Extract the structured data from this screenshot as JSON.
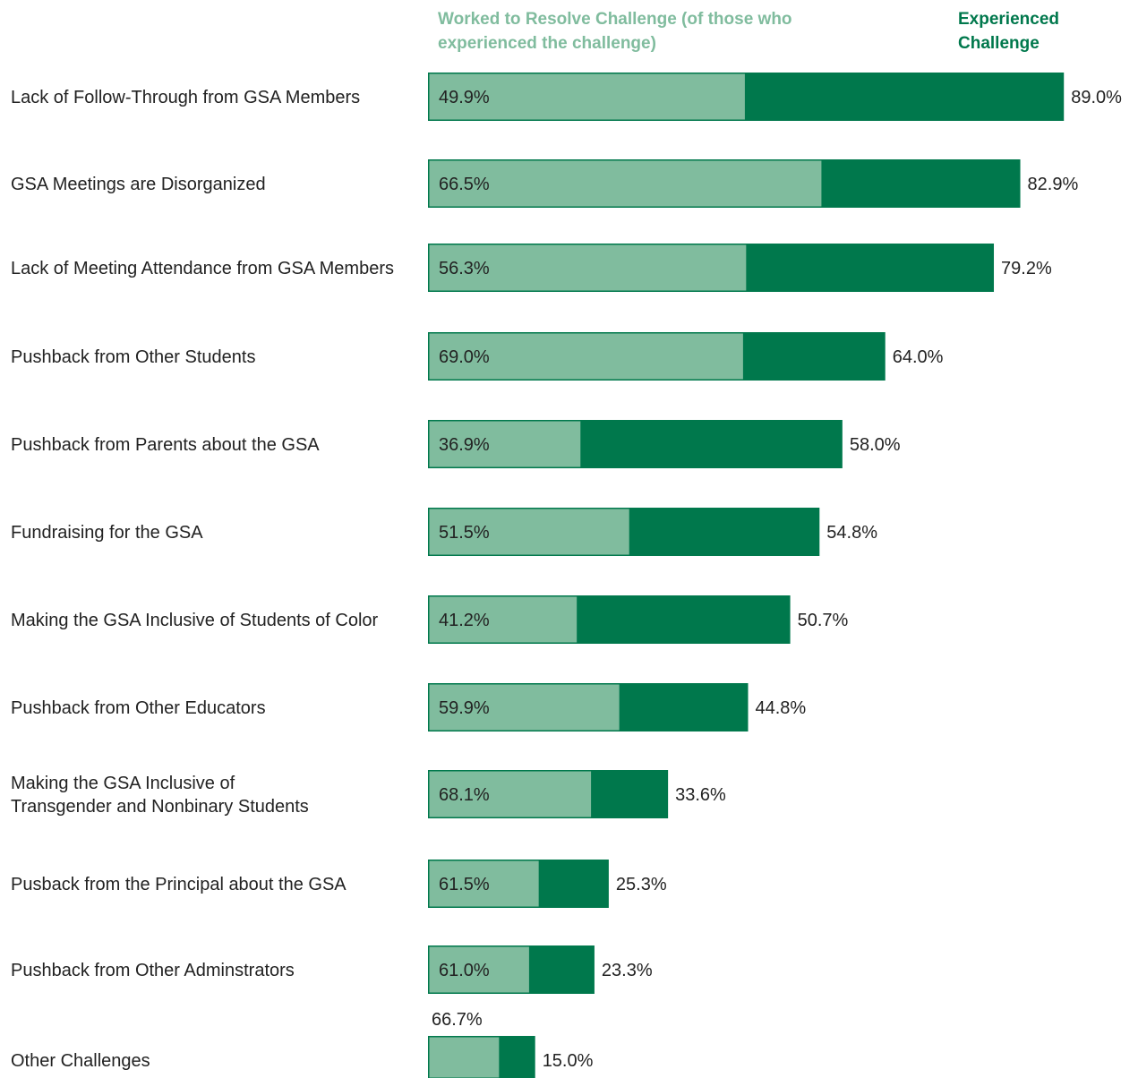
{
  "chart_data": {
    "type": "bar",
    "orientation": "horizontal",
    "layout": "nested",
    "legend_placement": "top",
    "grid": false,
    "xlim": [
      0,
      100
    ],
    "colors": {
      "worked_to_resolve": "#80bc9e",
      "experienced": "#00784c",
      "text": "#222222"
    },
    "legend": {
      "worked_to_resolve": "Worked to Resolve Challenge (of those who experienced the challenge)",
      "experienced": "Experienced Challenge"
    },
    "categories": [
      "Lack of Follow-Through from GSA Members",
      "GSA Meetings are Disorganized",
      "Lack of Meeting Attendance from GSA Members",
      "Pushback from Other Students",
      "Pushback from Parents about the GSA",
      "Fundraising for the GSA",
      "Making the GSA Inclusive of Students of Color",
      "Pushback from Other Educators",
      "Making the GSA Inclusive of Transgender and Nonbinary Students",
      "Pusback from the Principal about the GSA",
      "Pushback from Other Adminstrators",
      "Other Challenges"
    ],
    "series": [
      {
        "name": "Experienced Challenge",
        "values": [
          89.0,
          82.9,
          79.2,
          64.0,
          58.0,
          54.8,
          50.7,
          44.8,
          33.6,
          25.3,
          23.3,
          15.0
        ],
        "labels": [
          "89.0%",
          "82.9%",
          "79.2%",
          "64.0%",
          "58.0%",
          "54.8%",
          "50.7%",
          "44.8%",
          "33.6%",
          "25.3%",
          "23.3%",
          "15.0%"
        ]
      },
      {
        "name": "Worked to Resolve Challenge (of those who experienced the challenge)",
        "values": [
          49.9,
          66.5,
          56.3,
          69.0,
          36.9,
          51.5,
          41.2,
          59.9,
          68.1,
          61.5,
          61.0,
          66.7
        ],
        "labels": [
          "49.9%",
          "66.5%",
          "56.3%",
          "69.0%",
          "36.9%",
          "51.5%",
          "41.2%",
          "59.9%",
          "68.1%",
          "61.5%",
          "61.0%",
          "66.7%"
        ]
      }
    ]
  }
}
